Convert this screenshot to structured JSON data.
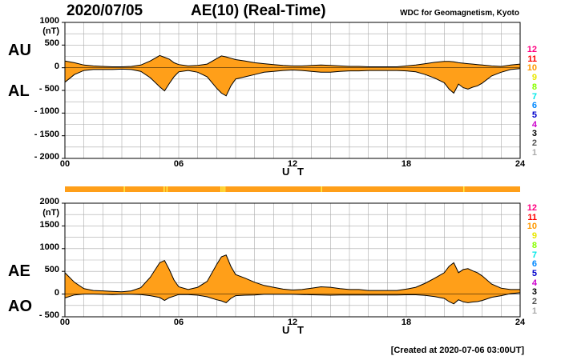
{
  "header": {
    "date": "2020/07/05",
    "title": "AE(10) (Real-Time)",
    "source": "WDC for Geomagnetism, Kyoto"
  },
  "footer": {
    "created": "[Created at 2020-07-06 03:00UT]"
  },
  "colors": {
    "fill": "#ff9f19",
    "stripe": "#ffee44",
    "grid": "#aaaaaa",
    "axis": "#000000",
    "curve": "#000000"
  },
  "legend": {
    "items": [
      {
        "label": "12",
        "color": "#ff0080"
      },
      {
        "label": "11",
        "color": "#ff0000"
      },
      {
        "label": "10",
        "color": "#ff9900"
      },
      {
        "label": "9",
        "color": "#e8e800"
      },
      {
        "label": "8",
        "color": "#88ff00"
      },
      {
        "label": "7",
        "color": "#00e8e8"
      },
      {
        "label": "6",
        "color": "#0088ff"
      },
      {
        "label": "5",
        "color": "#0000cc"
      },
      {
        "label": "4",
        "color": "#cc00cc"
      },
      {
        "label": "3",
        "color": "#000000"
      },
      {
        "label": "2",
        "color": "#555555"
      },
      {
        "label": "1",
        "color": "#aaaaaa"
      }
    ]
  },
  "chart_data": [
    {
      "type": "area",
      "name": "AU/AL",
      "upper_label": "AU",
      "lower_label": "AL",
      "ylim": [
        -2000,
        1000
      ],
      "yticks": [
        1000,
        500,
        0,
        -500,
        -1000,
        -1500,
        -2000
      ],
      "ytick_labels": [
        "1000",
        "500",
        "0",
        "- 500",
        "- 1000",
        "- 1500",
        "- 2000"
      ],
      "unit": "(nT)",
      "xlim": [
        0,
        24
      ],
      "xticks": [
        0,
        6,
        12,
        18,
        24
      ],
      "xtick_labels": [
        "00",
        "06",
        "12",
        "18",
        "24"
      ],
      "xlabel": "U T",
      "x": [
        0,
        0.5,
        1,
        1.5,
        2,
        2.5,
        3,
        3.5,
        4,
        4.5,
        5,
        5.25,
        5.5,
        5.75,
        6,
        6.5,
        7,
        7.5,
        8,
        8.25,
        8.5,
        8.75,
        9,
        9.5,
        10,
        10.5,
        11,
        11.5,
        12,
        12.5,
        13,
        13.5,
        14,
        14.5,
        15,
        15.5,
        16,
        16.5,
        17,
        17.5,
        18,
        18.5,
        19,
        19.5,
        20,
        20.25,
        20.5,
        20.75,
        21,
        21.25,
        21.5,
        21.75,
        22,
        22.5,
        23,
        23.5,
        24
      ],
      "series": [
        {
          "name": "AU",
          "values": [
            150,
            110,
            60,
            40,
            30,
            20,
            20,
            30,
            60,
            150,
            270,
            230,
            190,
            110,
            70,
            40,
            50,
            80,
            200,
            260,
            240,
            210,
            180,
            150,
            110,
            90,
            70,
            50,
            40,
            40,
            50,
            60,
            50,
            40,
            30,
            30,
            20,
            20,
            20,
            20,
            40,
            60,
            90,
            120,
            140,
            140,
            130,
            110,
            100,
            90,
            80,
            70,
            60,
            40,
            30,
            60,
            80
          ]
        },
        {
          "name": "AL",
          "values": [
            -320,
            -150,
            -60,
            -40,
            -40,
            -40,
            -30,
            -40,
            -80,
            -220,
            -420,
            -510,
            -350,
            -200,
            -90,
            -60,
            -100,
            -200,
            -450,
            -560,
            -620,
            -400,
            -250,
            -200,
            -150,
            -100,
            -80,
            -60,
            -50,
            -60,
            -80,
            -100,
            -100,
            -80,
            -70,
            -70,
            -60,
            -60,
            -60,
            -60,
            -70,
            -90,
            -150,
            -230,
            -330,
            -470,
            -560,
            -360,
            -440,
            -470,
            -430,
            -400,
            -340,
            -180,
            -100,
            -40,
            -20
          ]
        }
      ]
    },
    {
      "type": "area",
      "name": "AE/AO",
      "upper_label": "AE",
      "lower_label": "AO",
      "ylim": [
        -500,
        2000
      ],
      "yticks": [
        2000,
        1500,
        1000,
        500,
        0,
        -500
      ],
      "ytick_labels": [
        "2000",
        "1500",
        "1000",
        "500",
        "0",
        "- 500"
      ],
      "unit": "(nT)",
      "xlim": [
        0,
        24
      ],
      "xticks": [
        0,
        6,
        12,
        18,
        24
      ],
      "xtick_labels": [
        "00",
        "06",
        "12",
        "18",
        "24"
      ],
      "xlabel": "U T",
      "x": [
        0,
        0.5,
        1,
        1.5,
        2,
        2.5,
        3,
        3.5,
        4,
        4.5,
        5,
        5.25,
        5.5,
        5.75,
        6,
        6.5,
        7,
        7.5,
        8,
        8.25,
        8.5,
        8.75,
        9,
        9.5,
        10,
        10.5,
        11,
        11.5,
        12,
        12.5,
        13,
        13.5,
        14,
        14.5,
        15,
        15.5,
        16,
        16.5,
        17,
        17.5,
        18,
        18.5,
        19,
        19.5,
        20,
        20.25,
        20.5,
        20.75,
        21,
        21.25,
        21.5,
        21.75,
        22,
        22.5,
        23,
        23.5,
        24
      ],
      "series": [
        {
          "name": "AE",
          "values": [
            470,
            260,
            120,
            80,
            70,
            60,
            50,
            70,
            140,
            370,
            690,
            740,
            540,
            310,
            160,
            100,
            150,
            280,
            650,
            820,
            860,
            610,
            430,
            350,
            260,
            190,
            150,
            110,
            90,
            100,
            130,
            160,
            150,
            120,
            100,
            100,
            80,
            80,
            80,
            80,
            110,
            150,
            240,
            350,
            470,
            610,
            690,
            470,
            540,
            560,
            510,
            470,
            400,
            220,
            130,
            100,
            100
          ]
        },
        {
          "name": "AO",
          "values": [
            -85,
            -20,
            0,
            0,
            -5,
            -10,
            -5,
            -5,
            -10,
            -35,
            -75,
            -140,
            -80,
            -45,
            -10,
            -10,
            -25,
            -60,
            -125,
            -150,
            -190,
            -95,
            -35,
            -25,
            -20,
            -5,
            -5,
            -5,
            -5,
            -10,
            -15,
            -20,
            -25,
            -20,
            -20,
            -20,
            -20,
            -20,
            -20,
            -20,
            -15,
            -15,
            -30,
            -55,
            -95,
            -165,
            -215,
            -125,
            -170,
            -190,
            -175,
            -165,
            -140,
            -70,
            -35,
            10,
            30
          ]
        }
      ]
    }
  ]
}
